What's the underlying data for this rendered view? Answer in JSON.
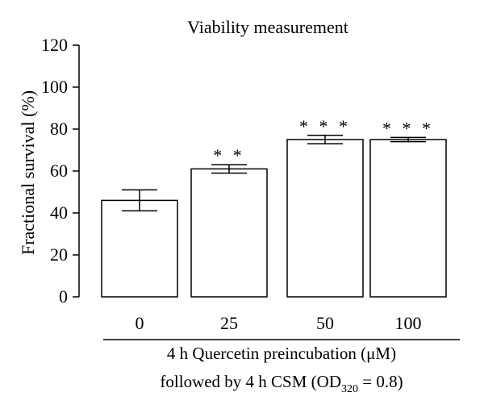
{
  "chart_data": {
    "type": "bar",
    "title": "Viability measurement",
    "ylabel": "Fractional survival (%)",
    "xlabel_line1": "4 h Quercetin preincubation (μM)",
    "xlabel_line2_prefix": "followed by 4 h CSM (OD",
    "xlabel_line2_subscript": "320",
    "xlabel_line2_suffix": " = 0.8)",
    "categories": [
      "0",
      "25",
      "50",
      "100"
    ],
    "values": [
      46,
      61,
      75,
      75
    ],
    "errors": [
      5,
      2,
      2,
      1
    ],
    "significance": [
      "",
      "* *",
      "* * *",
      "* * *"
    ],
    "ylim": [
      0,
      120
    ],
    "yticks": [
      "0",
      "20",
      "40",
      "60",
      "80",
      "100",
      "120"
    ],
    "grid": false
  }
}
